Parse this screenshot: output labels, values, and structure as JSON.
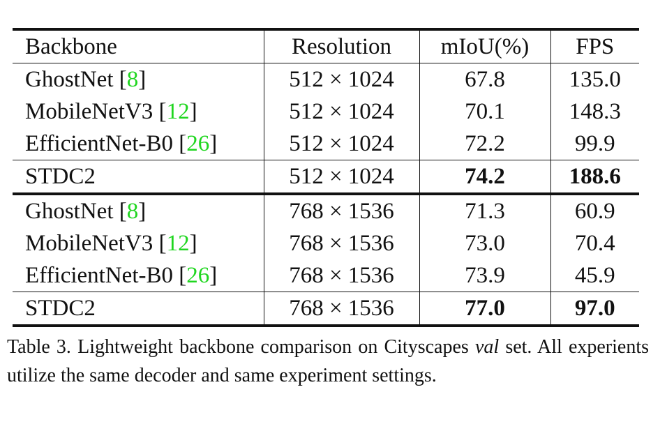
{
  "table": {
    "headers": [
      "Backbone",
      "Resolution",
      "mIoU(%)",
      "FPS"
    ],
    "groups": [
      {
        "rows": [
          {
            "backbone": "GhostNet",
            "cite": "8",
            "resolution": "512 × 1024",
            "miou": "67.8",
            "fps": "135.0"
          },
          {
            "backbone": "MobileNetV3",
            "cite": "12",
            "resolution": "512 × 1024",
            "miou": "70.1",
            "fps": "148.3"
          },
          {
            "backbone": "EfficientNet-B0",
            "cite": "26",
            "resolution": "512 × 1024",
            "miou": "72.2",
            "fps": "99.9"
          }
        ],
        "ours": {
          "backbone": "STDC2",
          "resolution": "512 × 1024",
          "miou": "74.2",
          "fps": "188.6"
        }
      },
      {
        "rows": [
          {
            "backbone": "GhostNet",
            "cite": "8",
            "resolution": "768 × 1536",
            "miou": "71.3",
            "fps": "60.9"
          },
          {
            "backbone": "MobileNetV3",
            "cite": "12",
            "resolution": "768 × 1536",
            "miou": "73.0",
            "fps": "70.4"
          },
          {
            "backbone": "EfficientNet-B0",
            "cite": "26",
            "resolution": "768 × 1536",
            "miou": "73.9",
            "fps": "45.9"
          }
        ],
        "ours": {
          "backbone": "STDC2",
          "resolution": "768 × 1536",
          "miou": "77.0",
          "fps": "97.0"
        }
      }
    ]
  },
  "caption": {
    "label": "Table 3.",
    "text_before": "Lightweight backbone comparison on Cityscapes",
    "italic": "val",
    "text_after": "set. All experients utilize the same decoder and same experiment settings."
  },
  "colors": {
    "citation": "#1fd61f",
    "text": "#111111"
  }
}
